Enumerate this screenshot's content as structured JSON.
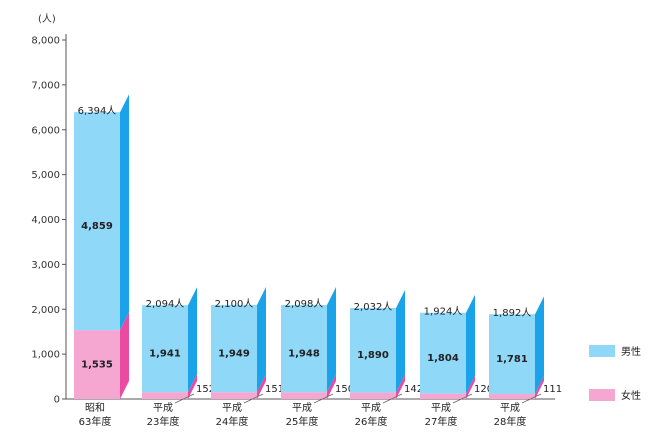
{
  "chart_data": {
    "type": "bar",
    "title": "",
    "unit_label": "(人)",
    "ylim": [
      0,
      8000
    ],
    "yticks": [
      "0",
      "1,000",
      "2,000",
      "3,000",
      "4,000",
      "5,000",
      "6,000",
      "7,000",
      "8,000"
    ],
    "categories": [
      [
        "昭和",
        "63年度"
      ],
      [
        "平成",
        "23年度"
      ],
      [
        "平成",
        "24年度"
      ],
      [
        "平成",
        "25年度"
      ],
      [
        "平成",
        "26年度"
      ],
      [
        "平成",
        "27年度"
      ],
      [
        "平成",
        "28年度"
      ]
    ],
    "totals": [
      "6,394人",
      "2,094人",
      "2,100人",
      "2,098人",
      "2,032人",
      "1,924人",
      "1,892人"
    ],
    "series": [
      {
        "name": "女性",
        "values": [
          1535,
          152,
          151,
          150,
          142,
          120,
          111
        ],
        "labels": [
          "1,535",
          "152",
          "151",
          "150",
          "142",
          "120",
          "111"
        ]
      },
      {
        "name": "男性",
        "values": [
          4859,
          1941,
          1949,
          1948,
          1890,
          1804,
          1781
        ],
        "labels": [
          "4,859",
          "1,941",
          "1,949",
          "1,948",
          "1,890",
          "1,804",
          "1,781"
        ]
      }
    ],
    "legend": "right",
    "colors": {
      "male_front": "#8fd8f8",
      "male_side": "#1aa3e8",
      "female_front": "#f5a7d2",
      "female_side": "#ea4aa0"
    }
  }
}
